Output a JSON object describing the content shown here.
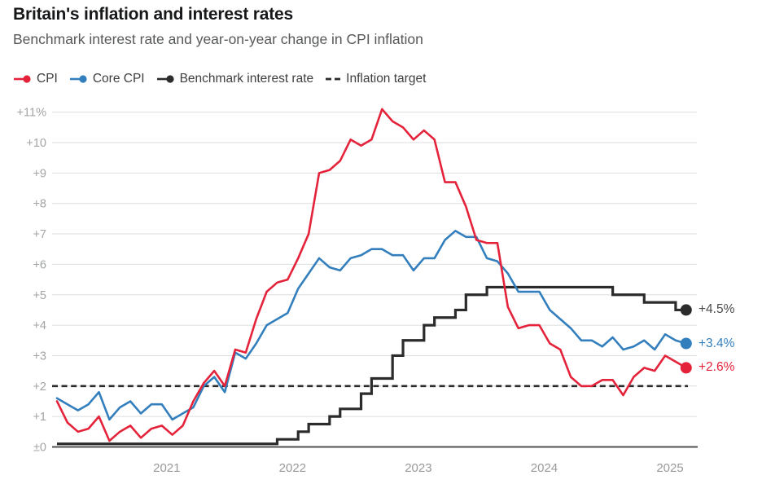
{
  "header": {
    "title": "Britain's inflation and interest rates",
    "subtitle": "Benchmark interest rate and year-on-year change in CPI inflation"
  },
  "legend": [
    {
      "label": "CPI",
      "color": "#e4233b",
      "marker": "line-dot"
    },
    {
      "label": "Core CPI",
      "color": "#337fbd",
      "marker": "line-dot"
    },
    {
      "label": "Benchmark interest rate",
      "color": "#2b2b2b",
      "marker": "line-dot"
    },
    {
      "label": "Inflation target",
      "color": "#2b2b2b",
      "marker": "dashes"
    }
  ],
  "chart_data": {
    "type": "line",
    "title": "Britain's inflation and interest rates",
    "subtitle": "Benchmark interest rate and year-on-year change in CPI inflation",
    "grid": true,
    "legend_position": "top",
    "x_axis": {
      "freq": "monthly",
      "start": "2020-03",
      "end": "2025-03",
      "tick_labels": [
        "2021",
        "2022",
        "2023",
        "2024",
        "2025"
      ]
    },
    "y_axis": {
      "range": [
        0,
        11
      ],
      "unit": "%",
      "tick_labels": [
        "±0",
        "+1",
        "+2",
        "+3",
        "+4",
        "+5",
        "+6",
        "+7",
        "+8",
        "+9",
        "+10",
        "+11%"
      ]
    },
    "series": [
      {
        "name": "CPI",
        "style": "line",
        "color": "#e4233b",
        "end_label": "+2.6%",
        "end_label_color": "#e4233b",
        "values": [
          1.5,
          0.8,
          0.5,
          0.6,
          1.0,
          0.2,
          0.5,
          0.7,
          0.3,
          0.6,
          0.7,
          0.4,
          0.7,
          1.5,
          2.1,
          2.5,
          2.0,
          3.2,
          3.1,
          4.2,
          5.1,
          5.4,
          5.5,
          6.2,
          7.0,
          9.0,
          9.1,
          9.4,
          10.1,
          9.9,
          10.1,
          11.1,
          10.7,
          10.5,
          10.1,
          10.4,
          10.1,
          8.7,
          8.7,
          7.9,
          6.8,
          6.7,
          6.7,
          4.6,
          3.9,
          4.0,
          4.0,
          3.4,
          3.2,
          2.3,
          2.0,
          2.0,
          2.2,
          2.2,
          1.7,
          2.3,
          2.6,
          2.5,
          3.0,
          2.8,
          2.6
        ]
      },
      {
        "name": "Core CPI",
        "style": "line",
        "color": "#337fbd",
        "end_label": "+3.4%",
        "end_label_color": "#337fbd",
        "values": [
          1.6,
          1.4,
          1.2,
          1.4,
          1.8,
          0.9,
          1.3,
          1.5,
          1.1,
          1.4,
          1.4,
          0.9,
          1.1,
          1.3,
          2.0,
          2.3,
          1.8,
          3.1,
          2.9,
          3.4,
          4.0,
          4.2,
          4.4,
          5.2,
          5.7,
          6.2,
          5.9,
          5.8,
          6.2,
          6.3,
          6.5,
          6.5,
          6.3,
          6.3,
          5.8,
          6.2,
          6.2,
          6.8,
          7.1,
          6.9,
          6.9,
          6.2,
          6.1,
          5.7,
          5.1,
          5.1,
          5.1,
          4.5,
          4.2,
          3.9,
          3.5,
          3.5,
          3.3,
          3.6,
          3.2,
          3.3,
          3.5,
          3.2,
          3.7,
          3.5,
          3.4
        ]
      },
      {
        "name": "Benchmark interest rate",
        "style": "step",
        "color": "#2b2b2b",
        "end_label": "+4.5%",
        "end_label_color": "#4a4a4c",
        "values": [
          0.1,
          0.1,
          0.1,
          0.1,
          0.1,
          0.1,
          0.1,
          0.1,
          0.1,
          0.1,
          0.1,
          0.1,
          0.1,
          0.1,
          0.1,
          0.1,
          0.1,
          0.1,
          0.1,
          0.1,
          0.1,
          0.25,
          0.25,
          0.5,
          0.75,
          0.75,
          1.0,
          1.25,
          1.25,
          1.75,
          2.25,
          2.25,
          3.0,
          3.5,
          3.5,
          4.0,
          4.25,
          4.25,
          4.5,
          5.0,
          5.0,
          5.25,
          5.25,
          5.25,
          5.25,
          5.25,
          5.25,
          5.25,
          5.25,
          5.25,
          5.25,
          5.25,
          5.25,
          5.0,
          5.0,
          5.0,
          4.75,
          4.75,
          4.75,
          4.5,
          4.5
        ]
      },
      {
        "name": "Inflation target",
        "style": "dashed-horizontal",
        "color": "#2b2b2b",
        "value": 2
      }
    ]
  }
}
